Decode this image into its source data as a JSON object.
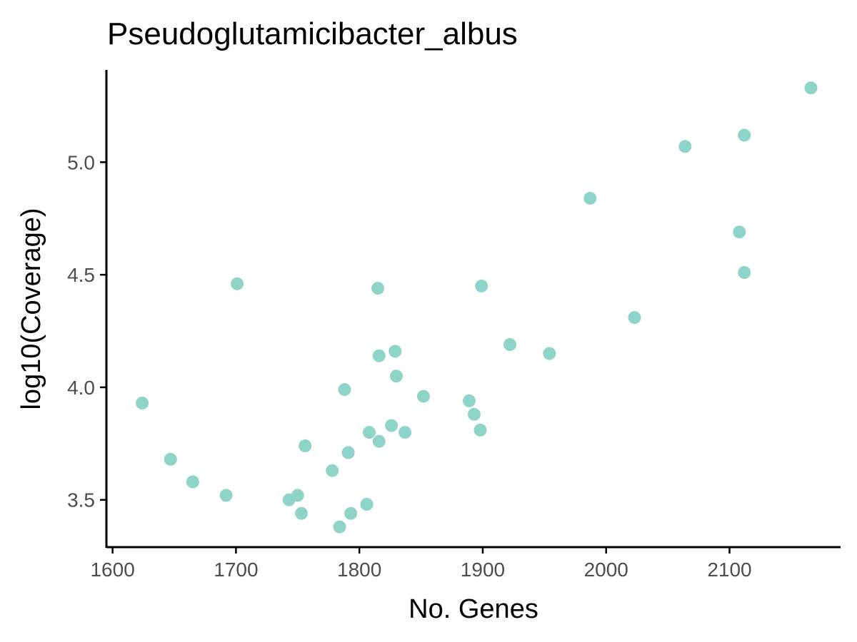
{
  "chart_data": {
    "type": "scatter",
    "title": "Pseudoglutamicibacter_albus",
    "xlabel": "No. Genes",
    "ylabel": "log10(Coverage)",
    "xlim": [
      1595,
      1190
    ],
    "ylim": [
      3.29,
      5.41
    ],
    "xticks": [
      1600,
      1700,
      1800,
      1900,
      2000,
      2100
    ],
    "xtick_labels": [
      "1600",
      "1700",
      "1800",
      "1900",
      "2000",
      "2100"
    ],
    "yticks": [
      3.5,
      4.0,
      4.5,
      5.0
    ],
    "ytick_labels": [
      "3.5",
      "4.0",
      "4.5",
      "5.0"
    ],
    "grid": false,
    "legend": "none",
    "point_color": "#8fd4c8",
    "points": [
      {
        "x": 1624,
        "y": 3.93
      },
      {
        "x": 1647,
        "y": 3.68
      },
      {
        "x": 1665,
        "y": 3.58
      },
      {
        "x": 1692,
        "y": 3.52
      },
      {
        "x": 1701,
        "y": 4.46
      },
      {
        "x": 1743,
        "y": 3.5
      },
      {
        "x": 1750,
        "y": 3.52
      },
      {
        "x": 1753,
        "y": 3.44
      },
      {
        "x": 1756,
        "y": 3.74
      },
      {
        "x": 1778,
        "y": 3.63
      },
      {
        "x": 1784,
        "y": 3.38
      },
      {
        "x": 1788,
        "y": 3.99
      },
      {
        "x": 1791,
        "y": 3.71
      },
      {
        "x": 1793,
        "y": 3.44
      },
      {
        "x": 1806,
        "y": 3.48
      },
      {
        "x": 1808,
        "y": 3.8
      },
      {
        "x": 1815,
        "y": 4.44
      },
      {
        "x": 1816,
        "y": 4.14
      },
      {
        "x": 1816,
        "y": 3.76
      },
      {
        "x": 1826,
        "y": 3.83
      },
      {
        "x": 1829,
        "y": 4.16
      },
      {
        "x": 1830,
        "y": 4.05
      },
      {
        "x": 1837,
        "y": 3.8
      },
      {
        "x": 1852,
        "y": 3.96
      },
      {
        "x": 1889,
        "y": 3.94
      },
      {
        "x": 1893,
        "y": 3.88
      },
      {
        "x": 1898,
        "y": 3.81
      },
      {
        "x": 1899,
        "y": 4.45
      },
      {
        "x": 1922,
        "y": 4.19
      },
      {
        "x": 1954,
        "y": 4.15
      },
      {
        "x": 1987,
        "y": 4.84
      },
      {
        "x": 2023,
        "y": 4.31
      },
      {
        "x": 2064,
        "y": 5.07
      },
      {
        "x": 2108,
        "y": 4.69
      },
      {
        "x": 2112,
        "y": 4.51
      },
      {
        "x": 2112,
        "y": 5.12
      },
      {
        "x": 2166,
        "y": 5.33
      }
    ]
  }
}
